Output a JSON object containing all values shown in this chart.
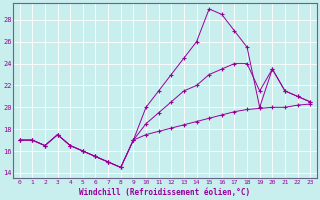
{
  "xlabel": "Windchill (Refroidissement éolien,°C)",
  "bg_color": "#c8eeee",
  "line_color": "#990099",
  "grid_color": "#ffffff",
  "xlim": [
    -0.5,
    23.5
  ],
  "ylim": [
    13.5,
    29.5
  ],
  "yticks": [
    14,
    16,
    18,
    20,
    22,
    24,
    26,
    28
  ],
  "xticks": [
    0,
    1,
    2,
    3,
    4,
    5,
    6,
    7,
    8,
    9,
    10,
    11,
    12,
    13,
    14,
    15,
    16,
    17,
    18,
    19,
    20,
    21,
    22,
    23
  ],
  "series": [
    {
      "x": [
        0,
        1,
        2,
        3,
        4,
        5,
        6,
        7,
        8,
        9,
        10,
        11,
        12,
        13,
        14,
        15,
        16,
        17,
        18,
        19,
        20,
        21,
        22,
        23
      ],
      "y": [
        17,
        17,
        16.5,
        17.5,
        16.5,
        16,
        15.5,
        15,
        14.5,
        17,
        20,
        21.5,
        23,
        24.5,
        26,
        29,
        28.5,
        27,
        25.5,
        20,
        23.5,
        21.5,
        21,
        20.5
      ]
    },
    {
      "x": [
        0,
        1,
        2,
        3,
        4,
        5,
        6,
        7,
        8,
        9,
        10,
        11,
        12,
        13,
        14,
        15,
        16,
        17,
        18,
        19,
        20,
        21,
        22,
        23
      ],
      "y": [
        17,
        17,
        16.5,
        17.5,
        16.5,
        16,
        15.5,
        15,
        14.5,
        17,
        18.5,
        19.5,
        20.5,
        21.5,
        22,
        23,
        23.5,
        24,
        24,
        21.5,
        23.5,
        21.5,
        21,
        20.5
      ]
    },
    {
      "x": [
        0,
        1,
        2,
        3,
        4,
        5,
        6,
        7,
        8,
        9,
        10,
        11,
        12,
        13,
        14,
        15,
        16,
        17,
        18,
        19,
        20,
        21,
        22,
        23
      ],
      "y": [
        17,
        17,
        16.5,
        17.5,
        16.5,
        16,
        15.5,
        15,
        14.5,
        17,
        17.5,
        17.8,
        18.1,
        18.4,
        18.7,
        19,
        19.3,
        19.6,
        19.8,
        19.9,
        20,
        20,
        20.2,
        20.3
      ]
    }
  ]
}
